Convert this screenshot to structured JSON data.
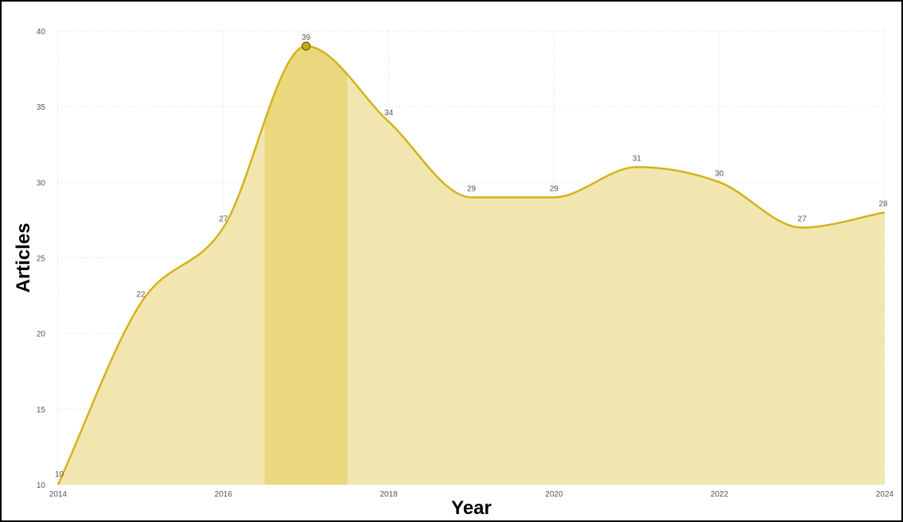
{
  "chart_data": {
    "type": "area",
    "title": "",
    "xlabel": "Year",
    "ylabel": "Articles",
    "x": [
      2014,
      2015,
      2016,
      2017,
      2018,
      2019,
      2020,
      2021,
      2022,
      2023,
      2024
    ],
    "values": [
      10,
      22,
      27,
      39,
      34,
      29,
      29,
      31,
      30,
      27,
      28
    ],
    "data_labels": [
      "10",
      "22",
      "27",
      "39",
      "34",
      "29",
      "29",
      "31",
      "30",
      "27",
      "28"
    ],
    "x_ticks": [
      2014,
      2016,
      2018,
      2020,
      2022,
      2024
    ],
    "x_tick_labels": [
      "2014",
      "2016",
      "2018",
      "2020",
      "2022",
      "2024"
    ],
    "y_ticks": [
      10,
      15,
      20,
      25,
      30,
      35,
      40
    ],
    "y_tick_labels": [
      "10",
      "15",
      "20",
      "25",
      "30",
      "35",
      "40"
    ],
    "xlim": [
      2014,
      2024
    ],
    "ylim": [
      10,
      40
    ],
    "grid": true,
    "legend": "none",
    "highlighted_x": 2017,
    "colors": {
      "line": "#d4b21c",
      "fill": "#f2e6b0",
      "highlight_band": "#ebd77e",
      "marker": "#c9a81a",
      "marker_stroke": "#6b5a10"
    }
  }
}
